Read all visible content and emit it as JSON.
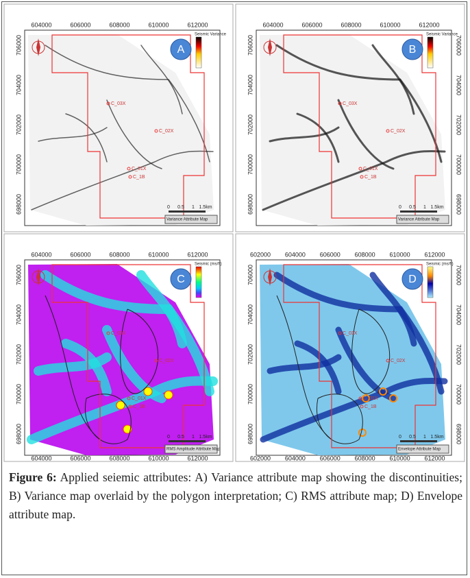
{
  "panels": [
    {
      "label": "A",
      "x_ticks": [
        "604000",
        "606000",
        "608000",
        "610000",
        "612000"
      ],
      "y_ticks": [
        "706000",
        "704000",
        "702000",
        "700000",
        "698000"
      ],
      "legend_title": "Seismic Variance",
      "map_title": "Variance Attribute Map",
      "scale": [
        "0",
        "0.5",
        "1",
        "1.5km"
      ],
      "wells": [
        "C_03X",
        "C_02X",
        "C_01X",
        "C_1B"
      ]
    },
    {
      "label": "B",
      "x_ticks": [
        "604000",
        "606000",
        "608000",
        "610000",
        "612000"
      ],
      "y_ticks": [
        "706000",
        "704000",
        "702000",
        "700000",
        "698000"
      ],
      "legend_title": "Seismic Variance",
      "map_title": "Variance Attribute Map",
      "scale": [
        "0",
        "0.5",
        "1",
        "1.5km"
      ],
      "wells": [
        "C_03X",
        "C_02X",
        "C_01X",
        "C_1B"
      ]
    },
    {
      "label": "C",
      "x_ticks": [
        "604000",
        "606000",
        "608000",
        "610000",
        "612000"
      ],
      "y_ticks": [
        "706000",
        "704000",
        "702000",
        "700000",
        "698000"
      ],
      "legend_title": "Seismic (ms/ft)",
      "map_title": "RMS Amplitude Attribute Map",
      "scale": [
        "0",
        "0.5",
        "1",
        "1.5km"
      ],
      "wells": [
        "C_03X",
        "C_02X",
        "C_01X",
        "C_1B"
      ]
    },
    {
      "label": "D",
      "x_ticks": [
        "602000",
        "604000",
        "606000",
        "608000",
        "610000",
        "612000"
      ],
      "y_ticks": [
        "706000",
        "704000",
        "702000",
        "700000",
        "698000"
      ],
      "legend_title": "Seismic (ms/ft)",
      "map_title": "Envelope Attribute Map",
      "scale": [
        "0",
        "0.5",
        "1",
        "1.5km"
      ],
      "wells": [
        "C_03X",
        "C_02X",
        "C_01X",
        "C_1B"
      ]
    }
  ],
  "caption": {
    "label": "Figure 6:",
    "text": "Applied seiemic attributes: A) Variance attribute map showing the discontinuities; B) Variance map overlaid by the polygon interpretation; C) RMS attribute map; D) Envelope attribute map."
  }
}
